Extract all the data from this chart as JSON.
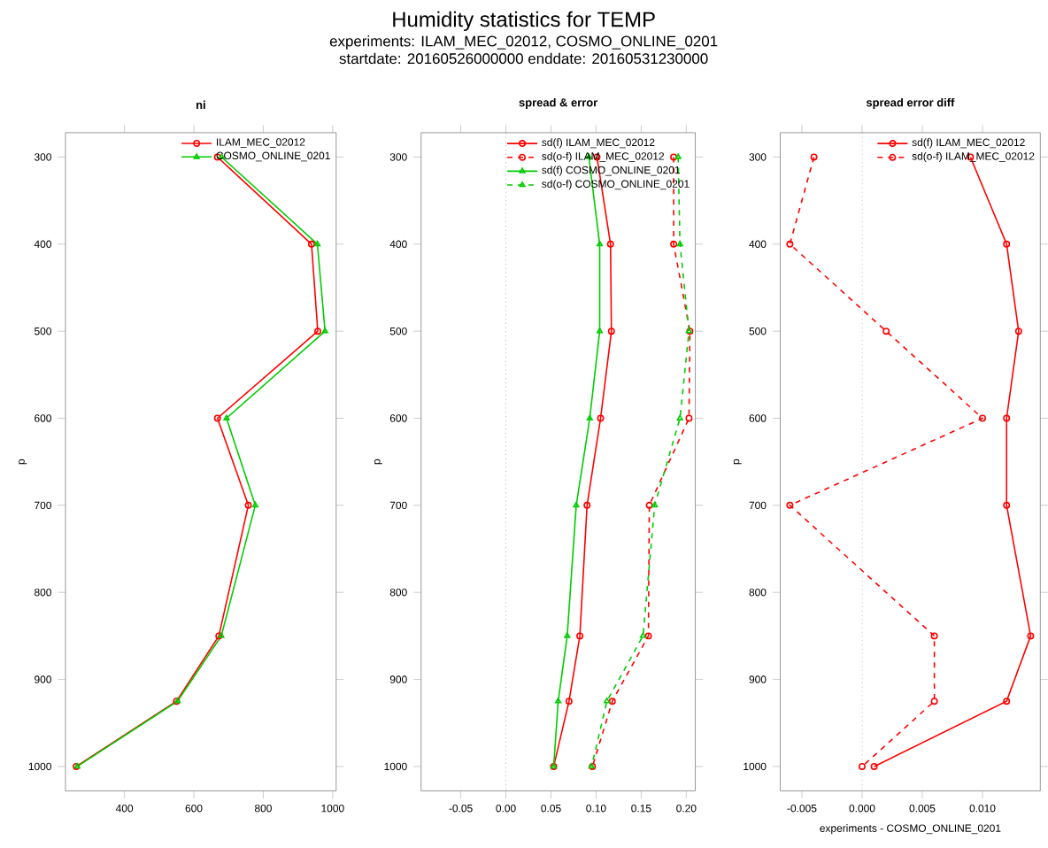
{
  "chart_data": [
    {
      "type": "line",
      "title": "ni",
      "ylabel": "p",
      "annotations": [
        "Humidity statistics for TEMP",
        "experiments:  ILAM_MEC_02012,  COSMO_ONLINE_0201",
        "startdate:  20160526000000      enddate:  20160531230000"
      ],
      "xlim": [
        230,
        1010
      ],
      "xticks": [
        400,
        600,
        800,
        1000
      ],
      "ylim": [
        1028,
        272
      ],
      "yticks": [
        300,
        400,
        500,
        600,
        700,
        800,
        900,
        1000
      ],
      "legend": "top right",
      "series": [
        {
          "name": "ILAM_MEC_02012",
          "color": "#ff0000",
          "marker": "circle",
          "line_style": "solid",
          "x": [
            668,
            939,
            957,
            668,
            757,
            672,
            550,
            261
          ],
          "values": [
            300,
            400,
            500,
            600,
            700,
            850,
            925,
            1000
          ]
        },
        {
          "name": "COSMO_ONLINE_0201",
          "color": "#00cc00",
          "marker": "triangle",
          "line_style": "solid",
          "x": [
            680,
            956,
            978,
            694,
            777,
            679,
            553,
            264
          ],
          "values": [
            300,
            400,
            500,
            600,
            700,
            850,
            925,
            1000
          ]
        }
      ]
    },
    {
      "type": "line",
      "title": "spread & error",
      "ylabel": "p",
      "xlim": [
        -0.094,
        0.21
      ],
      "xticks": [
        -0.05,
        {
          "value": 0,
          "label": "0.00"
        },
        0.05,
        {
          "value": 0.1,
          "label": "0.10"
        },
        0.15,
        {
          "value": 0.2,
          "label": "0.20"
        }
      ],
      "ylim": [
        1028,
        272
      ],
      "yticks": [
        300,
        400,
        500,
        600,
        700,
        800,
        900,
        1000
      ],
      "legend": "top right",
      "ref_lines": [
        {
          "axis": "x",
          "value": 0,
          "color": "#808080",
          "line_style": "dotted"
        }
      ],
      "series": [
        {
          "name": "sd(f) ILAM_MEC_02012",
          "color": "#ff0000",
          "marker": "circle",
          "line_style": "solid",
          "x": [
            0.101,
            0.116,
            0.117,
            0.105,
            0.09,
            0.082,
            0.07,
            0.053
          ],
          "values": [
            300,
            400,
            500,
            600,
            700,
            850,
            925,
            1000
          ]
        },
        {
          "name": "sd(o-f) ILAM_MEC_02012",
          "color": "#ff0000",
          "marker": "circle",
          "line_style": "dashed",
          "x": [
            0.186,
            0.186,
            0.204,
            0.203,
            0.159,
            0.158,
            0.118,
            0.096
          ],
          "values": [
            300,
            400,
            500,
            600,
            700,
            850,
            925,
            1000
          ]
        },
        {
          "name": "sd(f) COSMO_ONLINE_0201",
          "color": "#00cc00",
          "marker": "triangle",
          "line_style": "solid",
          "x": [
            0.092,
            0.104,
            0.104,
            0.093,
            0.078,
            0.068,
            0.058,
            0.053
          ],
          "values": [
            300,
            400,
            500,
            600,
            700,
            850,
            925,
            1000
          ]
        },
        {
          "name": "sd(o-f) COSMO_ONLINE_0201",
          "color": "#00cc00",
          "marker": "triangle",
          "line_style": "dashed",
          "x": [
            0.191,
            0.193,
            0.203,
            0.193,
            0.165,
            0.152,
            0.112,
            0.095
          ],
          "values": [
            300,
            400,
            500,
            600,
            700,
            850,
            925,
            1000
          ]
        }
      ]
    },
    {
      "type": "line",
      "title": "spread error diff",
      "ylabel": "p",
      "xlabel": "experiments - COSMO_ONLINE_0201",
      "xlim": [
        -0.0068,
        0.0148
      ],
      "xticks": [
        -0.005,
        {
          "value": 0,
          "label": "0.000"
        },
        0.005,
        {
          "value": 0.01,
          "label": "0.010"
        }
      ],
      "ylim": [
        1028,
        272
      ],
      "yticks": [
        300,
        400,
        500,
        600,
        700,
        800,
        900,
        1000
      ],
      "legend": "top right",
      "ref_lines": [
        {
          "axis": "x",
          "value": 0,
          "color": "#808080",
          "line_style": "dotted"
        }
      ],
      "series": [
        {
          "name": "sd(f) ILAM_MEC_02012",
          "color": "#ff0000",
          "marker": "circle",
          "line_style": "solid",
          "x": [
            0.009,
            0.012,
            0.013,
            0.012,
            0.012,
            0.014,
            0.012,
            0.001
          ],
          "values": [
            300,
            400,
            500,
            600,
            700,
            850,
            925,
            1000
          ]
        },
        {
          "name": "sd(o-f) ILAM_MEC_02012",
          "color": "#ff0000",
          "marker": "circle",
          "line_style": "dashed",
          "x": [
            -0.004,
            -0.006,
            0.002,
            0.01,
            -0.006,
            0.006,
            0.006,
            0.0
          ],
          "values": [
            300,
            400,
            500,
            600,
            700,
            850,
            925,
            1000
          ]
        }
      ]
    }
  ]
}
